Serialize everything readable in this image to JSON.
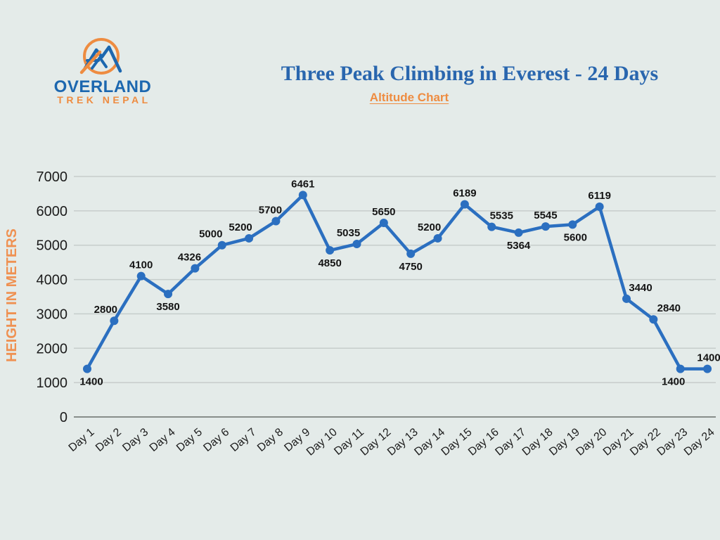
{
  "page": {
    "background": "#e4ebe9"
  },
  "logo": {
    "line1": "OVERLAND",
    "line2": "TREK NEPAL",
    "blue": "#1c67af",
    "orange": "#ee8c41"
  },
  "header": {
    "title": "Three Peak Climbing in Everest - 24 Days",
    "subtitle": "Altitude Chart",
    "title_color": "#2966ae",
    "subtitle_color": "#ee8c41"
  },
  "chart_data": {
    "type": "line",
    "title": "Three Peak Climbing in Everest - 24 Days",
    "subtitle": "Altitude Chart",
    "xlabel": "",
    "ylabel": "HEIGHT IN METERS",
    "categories": [
      "Day 1",
      "Day 2",
      "Day 3",
      "Day 4",
      "Day 5",
      "Day 6",
      "Day 7",
      "Day 8",
      "Day 9",
      "Day 10",
      "Day 11",
      "Day 12",
      "Day 13",
      "Day 14",
      "Day 15",
      "Day 16",
      "Day 17",
      "Day 18",
      "Day 19",
      "Day 20",
      "Day 21",
      "Day 22",
      "Day 23",
      "Day 24"
    ],
    "values": [
      1400,
      2800,
      4100,
      3580,
      4326,
      5000,
      5200,
      5700,
      6461,
      4850,
      5035,
      5650,
      4750,
      5200,
      6189,
      5535,
      5364,
      5545,
      5600,
      6119,
      3440,
      2840,
      1400,
      1400
    ],
    "ylim": [
      0,
      7000
    ],
    "yticks": [
      0,
      1000,
      2000,
      3000,
      4000,
      5000,
      6000,
      7000
    ],
    "grid": true,
    "legend": "none",
    "line_color": "#2b6fc0",
    "marker_color": "#2b6fc0",
    "grid_color": "#c6cdcb",
    "axis_color": "#878d8a",
    "tick_label_color": "#1c1c1c",
    "data_label_color": "#141414",
    "label_sides": [
      "below",
      "above",
      "above",
      "below",
      "above",
      "above",
      "above",
      "above",
      "above",
      "below",
      "above",
      "above",
      "below",
      "above",
      "above",
      "above",
      "below",
      "above",
      "below",
      "above",
      "above",
      "above",
      "below",
      "above"
    ],
    "label_dx": [
      6,
      -12,
      0,
      0,
      -8,
      -16,
      -12,
      -8,
      0,
      0,
      -12,
      0,
      0,
      -12,
      0,
      14,
      0,
      0,
      4,
      0,
      20,
      22,
      -10,
      2
    ]
  }
}
